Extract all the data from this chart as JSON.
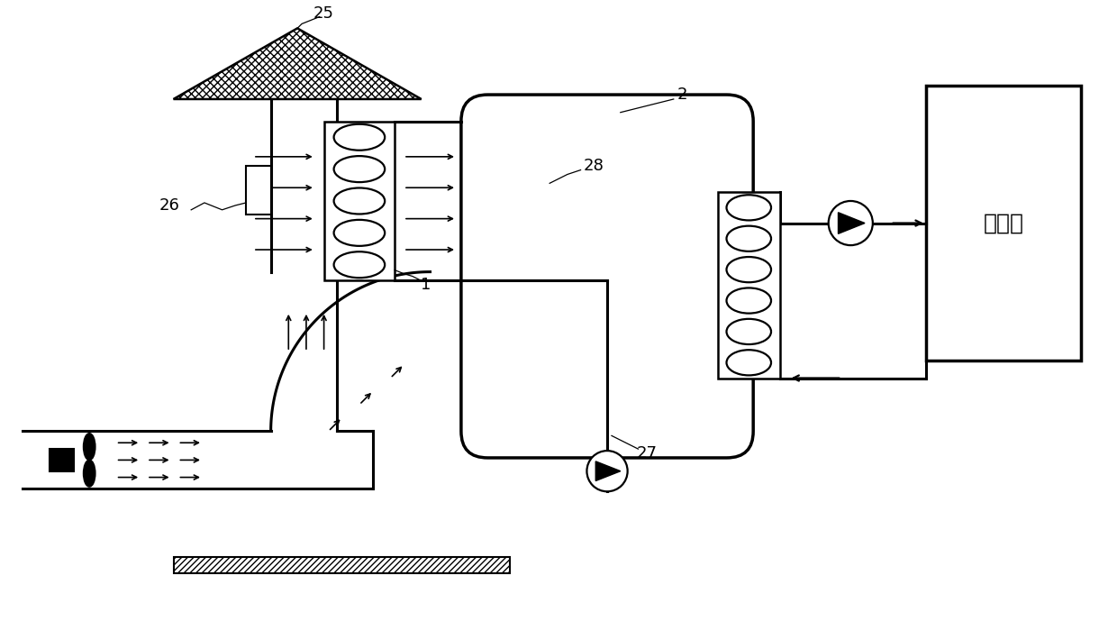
{
  "bg_color": "#ffffff",
  "line_color": "#000000",
  "label_25": "25",
  "label_26": "26",
  "label_27": "27",
  "label_28": "28",
  "label_1": "1",
  "label_2": "2",
  "label_user": "热用户",
  "fig_width": 12.4,
  "fig_height": 6.89,
  "dpi": 100
}
